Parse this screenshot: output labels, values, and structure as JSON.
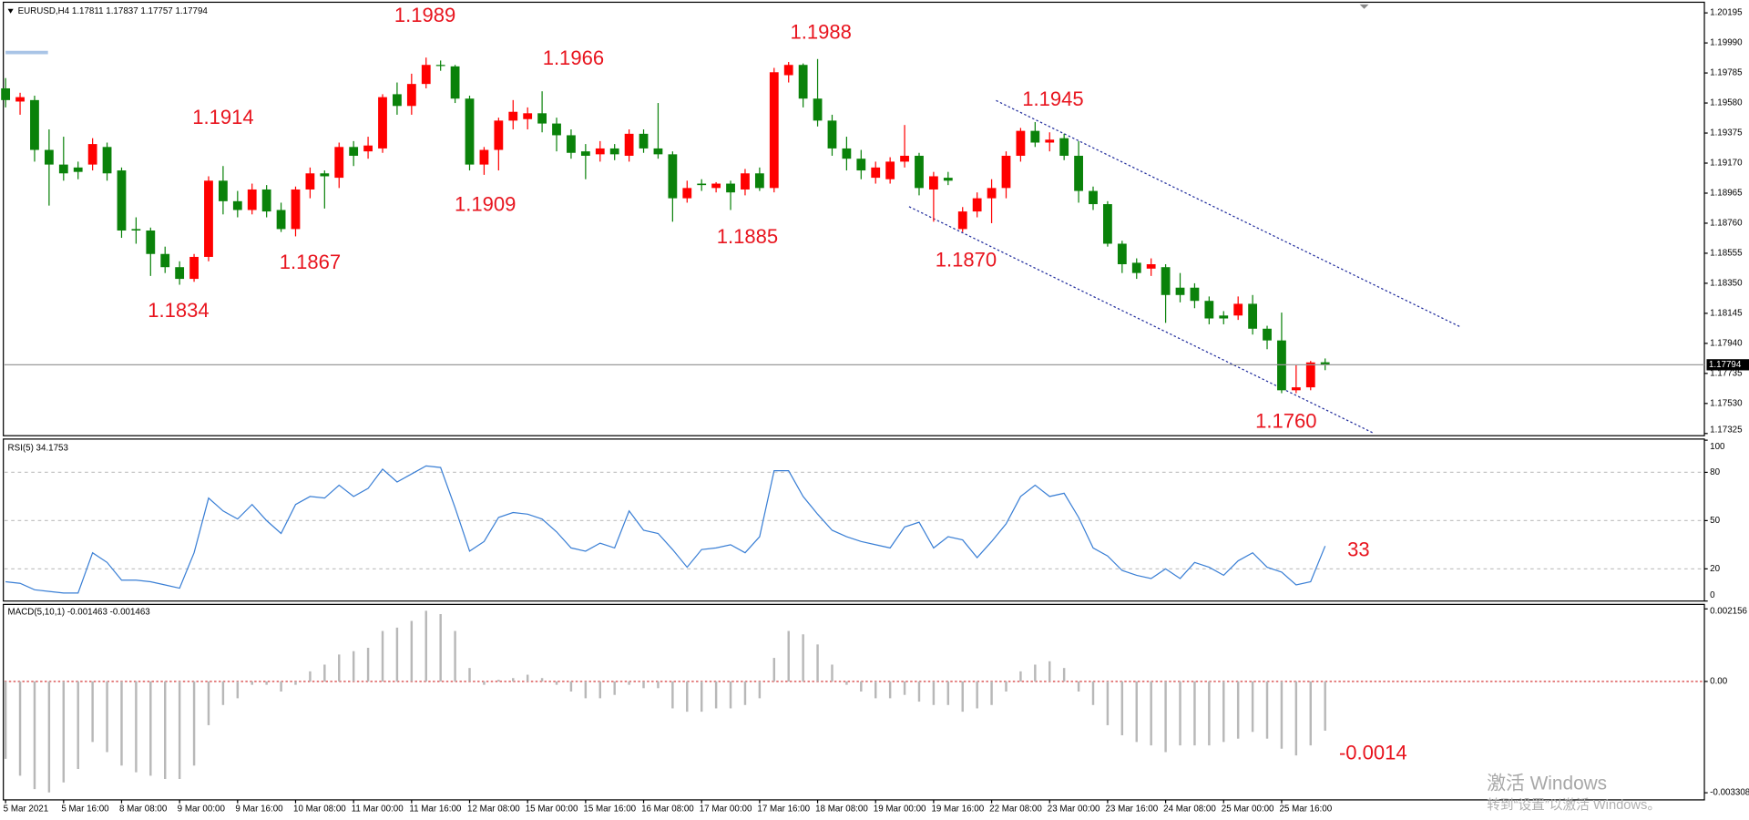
{
  "chart_data": [
    {
      "type": "candlestick",
      "title": "EURUSD,H4  1.17811 1.17837 1.17757 1.17794",
      "categories": [
        "5 Mar 2021",
        null,
        null,
        null,
        "5 Mar 16:00",
        null,
        null,
        null,
        "8 Mar 08:00",
        null,
        null,
        null,
        "9 Mar 00:00",
        null,
        null,
        null,
        "9 Mar 16:00",
        null,
        null,
        null,
        "10 Mar 08:00",
        null,
        null,
        null,
        "11 Mar 00:00",
        null,
        null,
        null,
        "11 Mar 16:00",
        null,
        null,
        null,
        "12 Mar 08:00",
        null,
        null,
        null,
        "15 Mar 00:00",
        null,
        null,
        null,
        "15 Mar 16:00",
        null,
        null,
        null,
        "16 Mar 08:00",
        null,
        null,
        null,
        "17 Mar 00:00",
        null,
        null,
        null,
        "17 Mar 16:00",
        null,
        null,
        null,
        "18 Mar 08:00",
        null,
        null,
        null,
        "19 Mar 00:00",
        null,
        null,
        null,
        "19 Mar 16:00",
        null,
        null,
        null,
        "22 Mar 08:00",
        null,
        null,
        null,
        "23 Mar 00:00",
        null,
        null,
        null,
        "23 Mar 16:00",
        null,
        null,
        null,
        "24 Mar 08:00",
        null,
        null,
        null,
        "25 Mar 00:00",
        null,
        null,
        null,
        "25 Mar 16:00",
        null,
        null,
        null
      ],
      "open": [
        1.1968,
        1.1959,
        1.196,
        1.1926,
        1.1916,
        1.1914,
        1.1916,
        1.1928,
        1.1912,
        1.1872,
        1.1871,
        1.1855,
        1.1846,
        1.1838,
        1.1853,
        1.1905,
        1.1891,
        1.1885,
        1.1899,
        1.1885,
        1.1872,
        1.1899,
        1.191,
        1.1907,
        1.1928,
        1.1925,
        1.1927,
        1.1964,
        1.1956,
        1.1971,
        1.1984,
        1.1983,
        1.1961,
        1.1916,
        1.1926,
        1.1946,
        1.1947,
        1.1951,
        1.1944,
        1.1936,
        1.1925,
        1.1923,
        1.1927,
        1.1922,
        1.1937,
        1.1927,
        1.1923,
        1.1893,
        1.1903,
        1.19,
        1.1903,
        1.1899,
        1.191,
        1.19,
        1.1977,
        1.1984,
        1.1961,
        1.1946,
        1.1927,
        1.192,
        1.1907,
        1.1906,
        1.1918,
        1.1922,
        1.1899,
        1.1907,
        1.1872,
        1.1884,
        1.1893,
        1.19,
        1.1922,
        1.1939,
        1.1931,
        1.1934,
        1.1922,
        1.1898,
        1.1889,
        1.1862,
        1.1849,
        1.1845,
        1.1846,
        1.1832,
        1.1832,
        1.1823,
        1.1813,
        1.1813,
        1.1821,
        1.1804,
        1.1796,
        1.1762,
        1.1764,
        1.17811
      ],
      "high": [
        1.1975,
        1.1965,
        1.1963,
        1.194,
        1.1935,
        1.1918,
        1.1934,
        1.1931,
        1.1914,
        1.188,
        1.1873,
        1.186,
        1.185,
        1.1855,
        1.1908,
        1.1915,
        1.1898,
        1.1903,
        1.1902,
        1.189,
        1.1901,
        1.1914,
        1.1912,
        1.1931,
        1.1932,
        1.1935,
        1.1964,
        1.1972,
        1.1978,
        1.1989,
        1.1987,
        1.1984,
        1.1963,
        1.1928,
        1.1948,
        1.196,
        1.1955,
        1.1966,
        1.1948,
        1.194,
        1.193,
        1.1932,
        1.193,
        1.194,
        1.194,
        1.1958,
        1.1925,
        1.1905,
        1.1906,
        1.1904,
        1.1905,
        1.1913,
        1.1914,
        1.1982,
        1.1986,
        1.1985,
        1.1988,
        1.195,
        1.1935,
        1.1926,
        1.1918,
        1.1921,
        1.1943,
        1.1924,
        1.1911,
        1.1911,
        1.1887,
        1.1897,
        1.1906,
        1.1925,
        1.1941,
        1.1945,
        1.1938,
        1.1937,
        1.1932,
        1.1901,
        1.1891,
        1.1864,
        1.1852,
        1.1852,
        1.1848,
        1.1842,
        1.1835,
        1.1826,
        1.1816,
        1.1826,
        1.1827,
        1.1806,
        1.1815,
        1.1779,
        1.1782,
        1.17837
      ],
      "low": [
        1.1955,
        1.195,
        1.1918,
        1.1888,
        1.1905,
        1.1906,
        1.1912,
        1.1905,
        1.1866,
        1.1862,
        1.184,
        1.1842,
        1.1834,
        1.1836,
        1.185,
        1.1882,
        1.188,
        1.1882,
        1.188,
        1.187,
        1.1867,
        1.1893,
        1.1886,
        1.19,
        1.1915,
        1.192,
        1.1924,
        1.195,
        1.195,
        1.1968,
        1.198,
        1.1958,
        1.1912,
        1.1909,
        1.1912,
        1.194,
        1.194,
        1.1938,
        1.1925,
        1.192,
        1.1906,
        1.1918,
        1.1919,
        1.1918,
        1.1924,
        1.192,
        1.1877,
        1.189,
        1.1898,
        1.1897,
        1.1885,
        1.1895,
        1.1898,
        1.1897,
        1.1972,
        1.1955,
        1.1942,
        1.1922,
        1.1912,
        1.1906,
        1.1903,
        1.1903,
        1.1914,
        1.1895,
        1.1877,
        1.1902,
        1.187,
        1.188,
        1.1876,
        1.1893,
        1.1918,
        1.1928,
        1.1925,
        1.1919,
        1.189,
        1.1885,
        1.186,
        1.1842,
        1.1838,
        1.184,
        1.1808,
        1.1822,
        1.1818,
        1.1807,
        1.1807,
        1.181,
        1.18,
        1.179,
        1.176,
        1.176,
        1.1762,
        1.17757
      ],
      "close": [
        1.196,
        1.1962,
        1.1926,
        1.1916,
        1.191,
        1.1911,
        1.193,
        1.191,
        1.1871,
        1.1871,
        1.1855,
        1.1846,
        1.1838,
        1.1853,
        1.1905,
        1.1891,
        1.1885,
        1.1899,
        1.1884,
        1.1872,
        1.1899,
        1.191,
        1.1908,
        1.1928,
        1.1922,
        1.1929,
        1.1962,
        1.1956,
        1.1971,
        1.1984,
        1.1984,
        1.1961,
        1.1916,
        1.1926,
        1.1946,
        1.1952,
        1.1951,
        1.1944,
        1.1936,
        1.1924,
        1.1922,
        1.1927,
        1.1923,
        1.1937,
        1.1927,
        1.1923,
        1.1893,
        1.19,
        1.1902,
        1.1903,
        1.1897,
        1.191,
        1.19,
        1.1979,
        1.1984,
        1.1961,
        1.1946,
        1.1927,
        1.192,
        1.1912,
        1.1914,
        1.1918,
        1.1922,
        1.19,
        1.1908,
        1.1905,
        1.1884,
        1.1893,
        1.19,
        1.1922,
        1.1939,
        1.1931,
        1.1933,
        1.1922,
        1.1898,
        1.1889,
        1.1862,
        1.1848,
        1.1842,
        1.1848,
        1.1827,
        1.1827,
        1.1823,
        1.1811,
        1.1811,
        1.1821,
        1.1804,
        1.1796,
        1.1762,
        1.1764,
        1.1781,
        1.17794
      ],
      "up_color": "#ff0000",
      "down_color": "#0a820a",
      "ylim": [
        1.1731,
        1.2026
      ],
      "yticks": [
        1.20195,
        {
          "value": 1.1999,
          "label": "1.19990"
        },
        1.19785,
        {
          "value": 1.1958,
          "label": "1.19580"
        },
        1.19375,
        {
          "value": 1.1917,
          "label": "1.19170"
        },
        1.18965,
        {
          "value": 1.1876,
          "label": "1.18760"
        },
        1.18555,
        {
          "value": 1.1835,
          "label": "1.18350"
        },
        1.18145,
        {
          "value": 1.1794,
          "label": "1.17940"
        },
        1.17735,
        {
          "value": 1.1753,
          "label": "1.17530"
        },
        1.17325
      ],
      "grid": false,
      "current_price": 1.17794,
      "annotations": [
        "1.1989",
        "1.1914",
        "1.1966",
        "1.1988",
        "1.1945",
        "1.1834",
        "1.1867",
        "1.1909",
        "1.1885",
        "1.1870",
        "1.1760"
      ],
      "annotation_color": "#e8141e"
    },
    {
      "type": "line",
      "title": "RSI(5) 34.1753",
      "values": [
        12,
        11,
        7,
        6,
        5,
        5,
        30,
        24,
        13,
        13,
        12,
        10,
        8,
        30,
        64,
        56,
        51,
        60,
        50,
        42,
        60,
        65,
        64,
        72,
        65,
        70,
        82,
        74,
        79,
        84,
        83,
        58,
        31,
        37,
        52,
        55,
        54,
        51,
        43,
        33,
        31,
        36,
        33,
        56,
        44,
        42,
        32,
        21,
        32,
        33,
        35,
        30,
        40,
        81,
        81,
        65,
        54,
        44,
        40,
        37,
        35,
        33,
        46,
        49,
        33,
        40,
        38,
        27,
        37,
        48,
        65,
        72,
        65,
        67,
        52,
        33,
        28,
        19,
        16,
        14,
        20,
        14,
        24,
        21,
        16,
        25,
        30,
        21,
        18,
        10,
        12,
        34.1753
      ],
      "color": "#3a7fd5",
      "ylim": [
        0,
        100
      ],
      "yticks": [
        0,
        20,
        50,
        80,
        100
      ],
      "grid": true,
      "annotations": [
        "33"
      ],
      "annotation_color": "#e8141e"
    },
    {
      "type": "bar",
      "title": "MACD(5,10,1) -0.001463 -0.001463",
      "values": [
        -0.0023,
        -0.0028,
        -0.0032,
        -0.0033,
        -0.003,
        -0.0026,
        -0.0018,
        -0.0021,
        -0.0025,
        -0.0027,
        -0.0028,
        -0.0029,
        -0.0029,
        -0.0025,
        -0.0013,
        -0.0007,
        -0.0005,
        -0.0001,
        -0.0001,
        -0.0003,
        -0.0001,
        0.0003,
        0.0005,
        0.0008,
        0.0009,
        0.001,
        0.0015,
        0.0016,
        0.0018,
        0.0021,
        0.002,
        0.0015,
        0.0004,
        -0.0001,
        5e-05,
        0.0001,
        0.0002,
        0.0001,
        -0.0001,
        -0.0003,
        -0.0005,
        -0.0005,
        -0.0004,
        -0.0001,
        -0.0002,
        -0.0002,
        -0.0008,
        -0.0009,
        -0.0009,
        -0.0008,
        -0.0008,
        -0.0007,
        -0.0005,
        0.0007,
        0.0015,
        0.0014,
        0.0011,
        0.0005,
        -0.0001,
        -0.0003,
        -0.0005,
        -0.0005,
        -0.0004,
        -0.0006,
        -0.0007,
        -0.0007,
        -0.0009,
        -0.0008,
        -0.0007,
        -0.0003,
        0.0003,
        0.0005,
        0.0006,
        0.0004,
        -0.0003,
        -0.0007,
        -0.0013,
        -0.0016,
        -0.0018,
        -0.0019,
        -0.0021,
        -0.0019,
        -0.0019,
        -0.0019,
        -0.0018,
        -0.0017,
        -0.0015,
        -0.0017,
        -0.002,
        -0.0022,
        -0.0019,
        -0.001463
      ],
      "color": "#b8b8b8",
      "ylim": [
        -0.00352,
        0.00229
      ],
      "yticks": [
        0.002156,
        {
          "value": 0,
          "label": "0.00"
        },
        -0.003308
      ],
      "zero_line_color": "#d02020",
      "annotations": [
        "-0.0014"
      ],
      "annotation_color": "#e8141e"
    }
  ],
  "watermark": {
    "title": "激活 Windows",
    "subtitle": "转到“设置”以激活 Windows。"
  }
}
